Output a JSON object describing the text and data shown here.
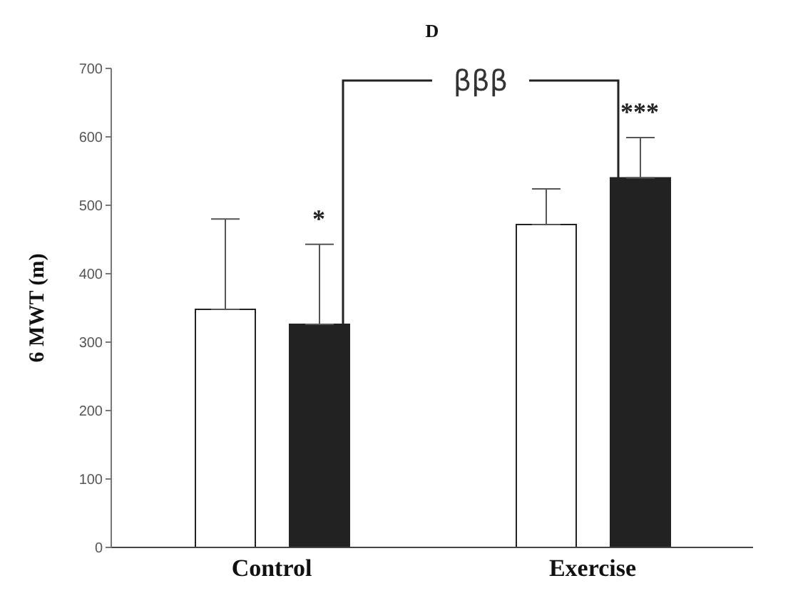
{
  "chart_data": {
    "type": "bar",
    "title": "D",
    "ylabel": "6 MWT (m)",
    "categories": [
      "Control",
      "Exercise"
    ],
    "series": [
      {
        "color": "#ffffff",
        "values": [
          348,
          472
        ],
        "errors": [
          [
            348,
            480
          ],
          [
            472,
            524
          ]
        ]
      },
      {
        "color": "#222222",
        "values": [
          326,
          540
        ],
        "errors": [
          [
            326,
            443
          ],
          [
            540,
            599
          ]
        ]
      }
    ],
    "ylim": [
      0,
      700
    ],
    "yticks": [
      0,
      100,
      200,
      300,
      400,
      500,
      600,
      700
    ],
    "grid": false,
    "legend": false,
    "annotations": [
      "*",
      "***",
      "βββ"
    ]
  }
}
